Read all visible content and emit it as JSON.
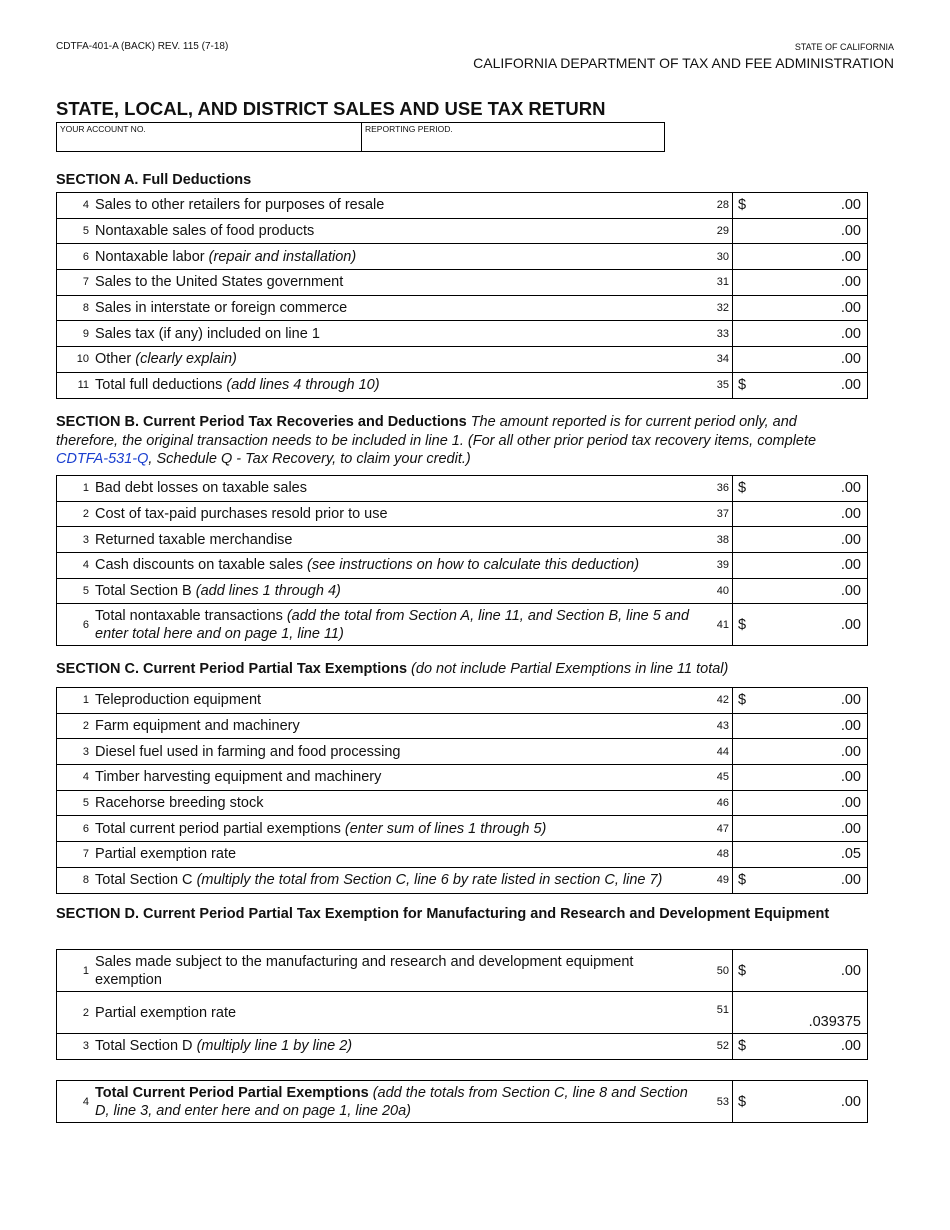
{
  "header": {
    "form_id": "CDTFA-401-A (BACK) REV. 115 (7-18)",
    "state": "STATE OF CALIFORNIA",
    "department": "CALIFORNIA DEPARTMENT OF TAX AND FEE ADMINISTRATION",
    "title": "STATE, LOCAL, AND DISTRICT SALES AND USE TAX RETURN",
    "account_label": "YOUR ACCOUNT NO.",
    "period_label": "REPORTING PERIOD."
  },
  "sectionA": {
    "title": "SECTION A. Full Deductions",
    "rows": [
      {
        "num": "4",
        "label": "Sales to other retailers for purposes of resale",
        "note": "",
        "code": "28",
        "dollar": "$",
        "value": ".00"
      },
      {
        "num": "5",
        "label": "Nontaxable sales of food products",
        "note": "",
        "code": "29",
        "dollar": "",
        "value": ".00"
      },
      {
        "num": "6",
        "label": "Nontaxable labor ",
        "note": "(repair and installation)",
        "code": "30",
        "dollar": "",
        "value": ".00"
      },
      {
        "num": "7",
        "label": "Sales to the United States government",
        "note": "",
        "code": "31",
        "dollar": "",
        "value": ".00"
      },
      {
        "num": "8",
        "label": "Sales in interstate or foreign commerce",
        "note": "",
        "code": "32",
        "dollar": "",
        "value": ".00"
      },
      {
        "num": "9",
        "label": "Sales tax (if any) included on line 1",
        "note": "",
        "code": "33",
        "dollar": "",
        "value": ".00"
      },
      {
        "num": "10",
        "label": "Other ",
        "note": "(clearly explain)",
        "code": "34",
        "dollar": "",
        "value": ".00"
      },
      {
        "num": "11",
        "label": "Total full deductions ",
        "note": "(add lines 4 through 10)",
        "code": "35",
        "dollar": "$",
        "value": ".00"
      }
    ]
  },
  "sectionB": {
    "title": "SECTION B. Current Period Tax Recoveries and Deductions",
    "desc1": " The amount reported is for current period only, and therefore, the original transaction needs to be included in line 1. (For all other prior period tax recovery items, complete ",
    "link": "CDTFA-531-Q",
    "desc2": ", Schedule Q - Tax Recovery, to claim your credit.)",
    "rows": [
      {
        "num": "1",
        "label": "Bad debt losses on taxable sales",
        "note": "",
        "code": "36",
        "dollar": "$",
        "value": ".00"
      },
      {
        "num": "2",
        "label": "Cost of tax-paid purchases resold prior to use",
        "note": "",
        "code": "37",
        "dollar": "",
        "value": ".00"
      },
      {
        "num": "3",
        "label": "Returned taxable merchandise",
        "note": "",
        "code": "38",
        "dollar": "",
        "value": ".00"
      },
      {
        "num": "4",
        "label": "Cash discounts on taxable sales ",
        "note": "(see instructions on how to calculate this deduction)",
        "code": "39",
        "dollar": "",
        "value": ".00"
      },
      {
        "num": "5",
        "label": "Total Section B ",
        "note": "(add lines 1 through 4)",
        "code": "40",
        "dollar": "",
        "value": ".00"
      },
      {
        "num": "6",
        "label": "Total nontaxable transactions ",
        "note": "(add the total from Section A, line 11, and Section B, line 5 and enter total here and on page 1, line 11)",
        "code": "41",
        "dollar": "$",
        "value": ".00",
        "tall": true
      }
    ]
  },
  "sectionC": {
    "title": "SECTION C. Current Period Partial Tax Exemptions",
    "note": " (do not include Partial Exemptions in line 11 total)",
    "rows": [
      {
        "num": "1",
        "label": "Teleproduction equipment",
        "note": "",
        "code": "42",
        "dollar": "$",
        "value": ".00"
      },
      {
        "num": "2",
        "label": "Farm equipment and machinery",
        "note": "",
        "code": "43",
        "dollar": "",
        "value": ".00"
      },
      {
        "num": "3",
        "label": "Diesel fuel used in farming and food processing",
        "note": "",
        "code": "44",
        "dollar": "",
        "value": ".00"
      },
      {
        "num": "4",
        "label": "Timber harvesting equipment and machinery",
        "note": "",
        "code": "45",
        "dollar": "",
        "value": ".00"
      },
      {
        "num": "5",
        "label": "Racehorse breeding stock",
        "note": "",
        "code": "46",
        "dollar": "",
        "value": ".00"
      },
      {
        "num": "6",
        "label": "Total current period partial exemptions ",
        "note": "(enter sum of lines 1 through 5)",
        "code": "47",
        "dollar": "",
        "value": ".00"
      },
      {
        "num": "7",
        "label": "Partial exemption rate",
        "note": "",
        "code": "48",
        "dollar": "",
        "value": ".05"
      },
      {
        "num": "8",
        "label": "Total Section C ",
        "note": "(multiply the total from Section C, line 6 by rate listed in section C, line 7)",
        "code": "49",
        "dollar": "$",
        "value": ".00"
      }
    ]
  },
  "sectionD": {
    "title": "SECTION D. Current Period Partial Tax Exemption for Manufacturing and Research and Development Equipment",
    "rows": [
      {
        "num": "1",
        "label": "Sales made subject to the manufacturing and research and development equipment exemption",
        "note": "",
        "code": "50",
        "dollar": "$",
        "value": ".00",
        "tall": true
      },
      {
        "num": "2",
        "label": "Partial exemption rate",
        "note": "",
        "code": "51",
        "dollar": "",
        "value": ".039375",
        "tall": true,
        "bottom": true
      },
      {
        "num": "3",
        "label": "Total Section D ",
        "note": "(multiply line 1 by line 2)",
        "code": "52",
        "dollar": "$",
        "value": ".00"
      }
    ]
  },
  "total": {
    "rows": [
      {
        "num": "4",
        "bold": "Total Current Period Partial Exemptions",
        "note": " (add the totals from Section C, line 8 and Section D, line 3, and enter here and on page 1, line 20a)",
        "code": "53",
        "dollar": "$",
        "value": ".00",
        "tall": true
      }
    ]
  }
}
